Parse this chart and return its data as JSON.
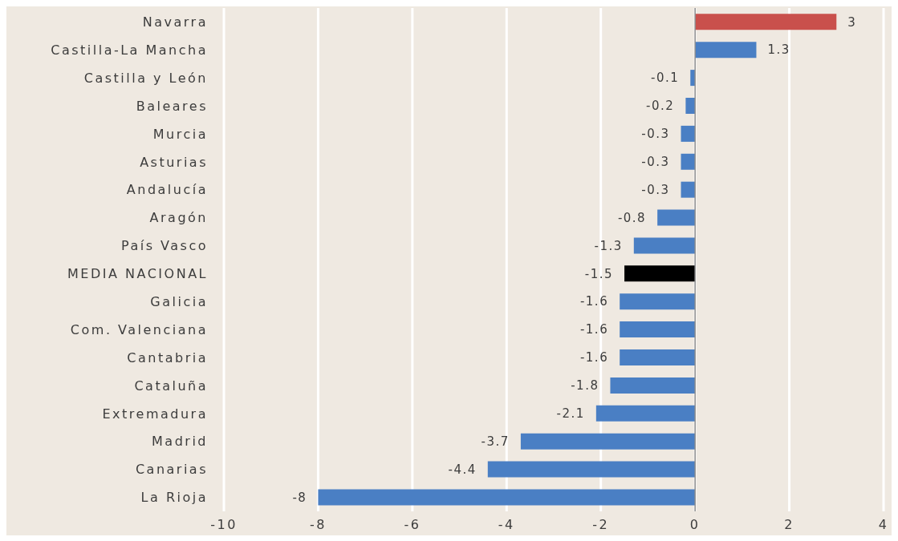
{
  "chart_data": {
    "type": "bar",
    "orientation": "horizontal",
    "categories": [
      "Navarra",
      "Castilla-La Mancha",
      "Castilla y León",
      "Baleares",
      "Murcia",
      "Asturias",
      "Andalucía",
      "Aragón",
      "País Vasco",
      "MEDIA NACIONAL",
      "Galicia",
      "Com. Valenciana",
      "Cantabria",
      "Cataluña",
      "Extremadura",
      "Madrid",
      "Canarias",
      "La Rioja"
    ],
    "values": [
      3,
      1.3,
      -0.1,
      -0.2,
      -0.3,
      -0.3,
      -0.3,
      -0.8,
      -1.3,
      -1.5,
      -1.6,
      -1.6,
      -1.6,
      -1.8,
      -2.1,
      -3.7,
      -4.4,
      -8
    ],
    "colors": [
      "#c9504c",
      "#4a7fc4",
      "#4a7fc4",
      "#4a7fc4",
      "#4a7fc4",
      "#4a7fc4",
      "#4a7fc4",
      "#4a7fc4",
      "#4a7fc4",
      "#000000",
      "#4a7fc4",
      "#4a7fc4",
      "#4a7fc4",
      "#4a7fc4",
      "#4a7fc4",
      "#4a7fc4",
      "#4a7fc4",
      "#4a7fc4"
    ],
    "xlim": [
      -10,
      4
    ],
    "xticks": [
      -10,
      -8,
      -6,
      -4,
      -2,
      0,
      2,
      4
    ],
    "grid": "x",
    "data_labels": true,
    "ref_lines": [
      {
        "axis": "x",
        "value": 0,
        "color": "#8c8c8c"
      }
    ]
  }
}
